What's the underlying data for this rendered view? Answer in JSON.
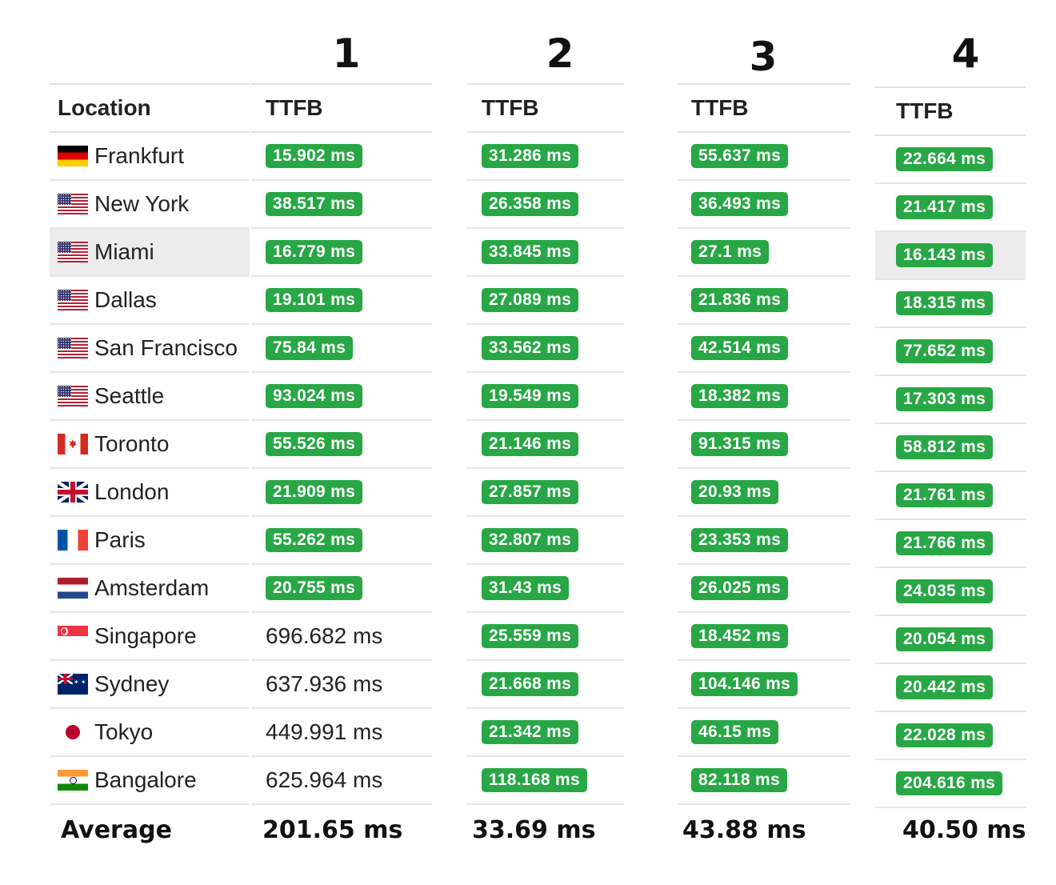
{
  "table": {
    "location_header": "Location",
    "ttfb_header": "TTFB",
    "average_label": "Average",
    "column_numbers": [
      "1",
      "2",
      "3",
      "4"
    ],
    "locations": [
      {
        "name": "Frankfurt",
        "flag": "flag-germany"
      },
      {
        "name": "New York",
        "flag": "flag-usa"
      },
      {
        "name": "Miami",
        "flag": "flag-usa"
      },
      {
        "name": "Dallas",
        "flag": "flag-usa"
      },
      {
        "name": "San Francisco",
        "flag": "flag-usa"
      },
      {
        "name": "Seattle",
        "flag": "flag-usa"
      },
      {
        "name": "Toronto",
        "flag": "flag-canada"
      },
      {
        "name": "London",
        "flag": "flag-uk"
      },
      {
        "name": "Paris",
        "flag": "flag-france"
      },
      {
        "name": "Amsterdam",
        "flag": "flag-netherlands"
      },
      {
        "name": "Singapore",
        "flag": "flag-singapore"
      },
      {
        "name": "Sydney",
        "flag": "flag-australia"
      },
      {
        "name": "Tokyo",
        "flag": "flag-japan"
      },
      {
        "name": "Bangalore",
        "flag": "flag-india"
      }
    ],
    "columns": [
      {
        "values": [
          "15.902 ms",
          "38.517 ms",
          "16.779 ms",
          "19.101 ms",
          "75.84 ms",
          "93.024 ms",
          "55.526 ms",
          "21.909 ms",
          "55.262 ms",
          "20.755 ms",
          "696.682 ms",
          "637.936 ms",
          "449.991 ms",
          "625.964 ms"
        ],
        "badge": [
          true,
          true,
          true,
          true,
          true,
          true,
          true,
          true,
          true,
          true,
          false,
          false,
          false,
          false
        ],
        "average": "201.65 ms"
      },
      {
        "values": [
          "31.286 ms",
          "26.358 ms",
          "33.845 ms",
          "27.089 ms",
          "33.562 ms",
          "19.549 ms",
          "21.146 ms",
          "27.857 ms",
          "32.807 ms",
          "31.43 ms",
          "25.559 ms",
          "21.668 ms",
          "21.342 ms",
          "118.168 ms"
        ],
        "badge": [
          true,
          true,
          true,
          true,
          true,
          true,
          true,
          true,
          true,
          true,
          true,
          true,
          true,
          true
        ],
        "average": "33.69 ms"
      },
      {
        "values": [
          "55.637 ms",
          "36.493 ms",
          "27.1 ms",
          "21.836 ms",
          "42.514 ms",
          "18.382 ms",
          "91.315 ms",
          "20.93 ms",
          "23.353 ms",
          "26.025 ms",
          "18.452 ms",
          "104.146 ms",
          "46.15 ms",
          "82.118 ms"
        ],
        "badge": [
          true,
          true,
          true,
          true,
          true,
          true,
          true,
          true,
          true,
          true,
          true,
          true,
          true,
          true
        ],
        "average": "43.88 ms"
      },
      {
        "values": [
          "22.664 ms",
          "21.417 ms",
          "16.143 ms",
          "18.315 ms",
          "77.652 ms",
          "17.303 ms",
          "58.812 ms",
          "21.761 ms",
          "21.766 ms",
          "24.035 ms",
          "20.054 ms",
          "20.442 ms",
          "22.028 ms",
          "204.616 ms"
        ],
        "badge": [
          true,
          true,
          true,
          true,
          true,
          true,
          true,
          true,
          true,
          true,
          true,
          true,
          true,
          true
        ],
        "average": "40.50 ms"
      }
    ]
  },
  "colors": {
    "badge_green": "#28a745",
    "highlight_row": "#ececec"
  }
}
